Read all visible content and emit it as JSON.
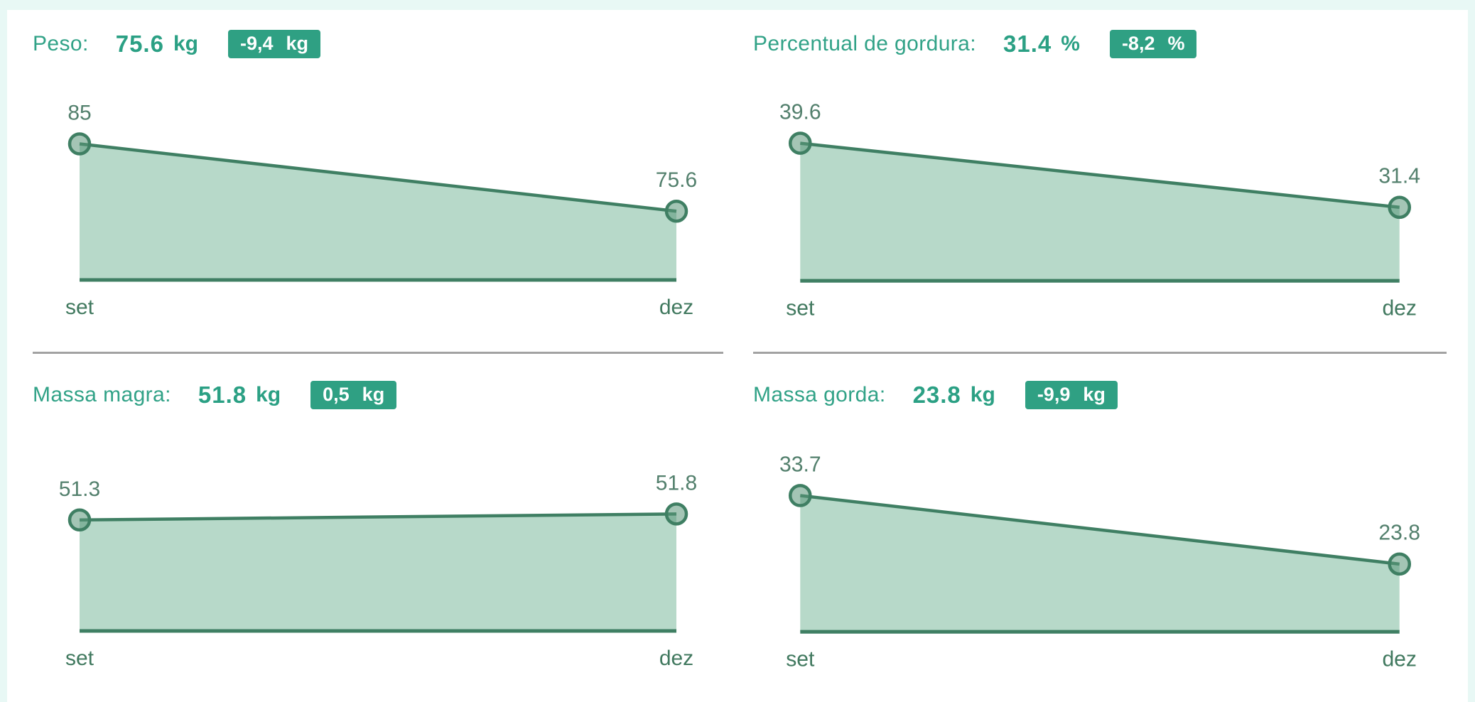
{
  "page": {
    "background": "#ffffff",
    "border_color": "#e8f8f5"
  },
  "colors": {
    "accent_text": "#31a287",
    "value_text": "#2ba084",
    "badge_bg": "#2fa083",
    "badge_text": "#ffffff",
    "line": "#3f7f63",
    "area_fill": "#b7d9c9",
    "marker_fill": "rgba(90,150,120,0.55)",
    "point_label": "#53806d",
    "axis_label": "#41795f",
    "divider": "#a2a2a2"
  },
  "chart_data": [
    {
      "type": "area",
      "title": "Peso:",
      "current_value": "75.6",
      "unit": "kg",
      "delta": "-9,4",
      "delta_unit": "kg",
      "categories": [
        "set",
        "dez"
      ],
      "values": [
        85,
        75.6
      ],
      "point_labels": [
        "85",
        "75.6"
      ],
      "ylim": [
        66,
        91
      ],
      "xlabel": "",
      "ylabel": "",
      "grid": false,
      "legend": false
    },
    {
      "type": "area",
      "title": "Percentual de gordura:",
      "current_value": "31.4",
      "unit": "%",
      "delta": "-8,2",
      "delta_unit": "%",
      "categories": [
        "set",
        "dez"
      ],
      "values": [
        39.6,
        31.4
      ],
      "point_labels": [
        "39.6",
        "31.4"
      ],
      "ylim": [
        22,
        45
      ],
      "xlabel": "",
      "ylabel": "",
      "grid": false,
      "legend": false
    },
    {
      "type": "area",
      "title": "Massa magra:",
      "current_value": "51.8",
      "unit": "kg",
      "delta": "0,5",
      "delta_unit": "kg",
      "categories": [
        "set",
        "dez"
      ],
      "values": [
        51.3,
        51.8
      ],
      "point_labels": [
        "51.3",
        "51.8"
      ],
      "ylim": [
        42,
        57
      ],
      "xlabel": "",
      "ylabel": "",
      "grid": false,
      "legend": false
    },
    {
      "type": "area",
      "title": "Massa gorda:",
      "current_value": "23.8",
      "unit": "kg",
      "delta": "-9,9",
      "delta_unit": "kg",
      "categories": [
        "set",
        "dez"
      ],
      "values": [
        33.7,
        23.8
      ],
      "point_labels": [
        "33.7",
        "23.8"
      ],
      "ylim": [
        14,
        40
      ],
      "xlabel": "",
      "ylabel": "",
      "grid": false,
      "legend": false
    }
  ]
}
